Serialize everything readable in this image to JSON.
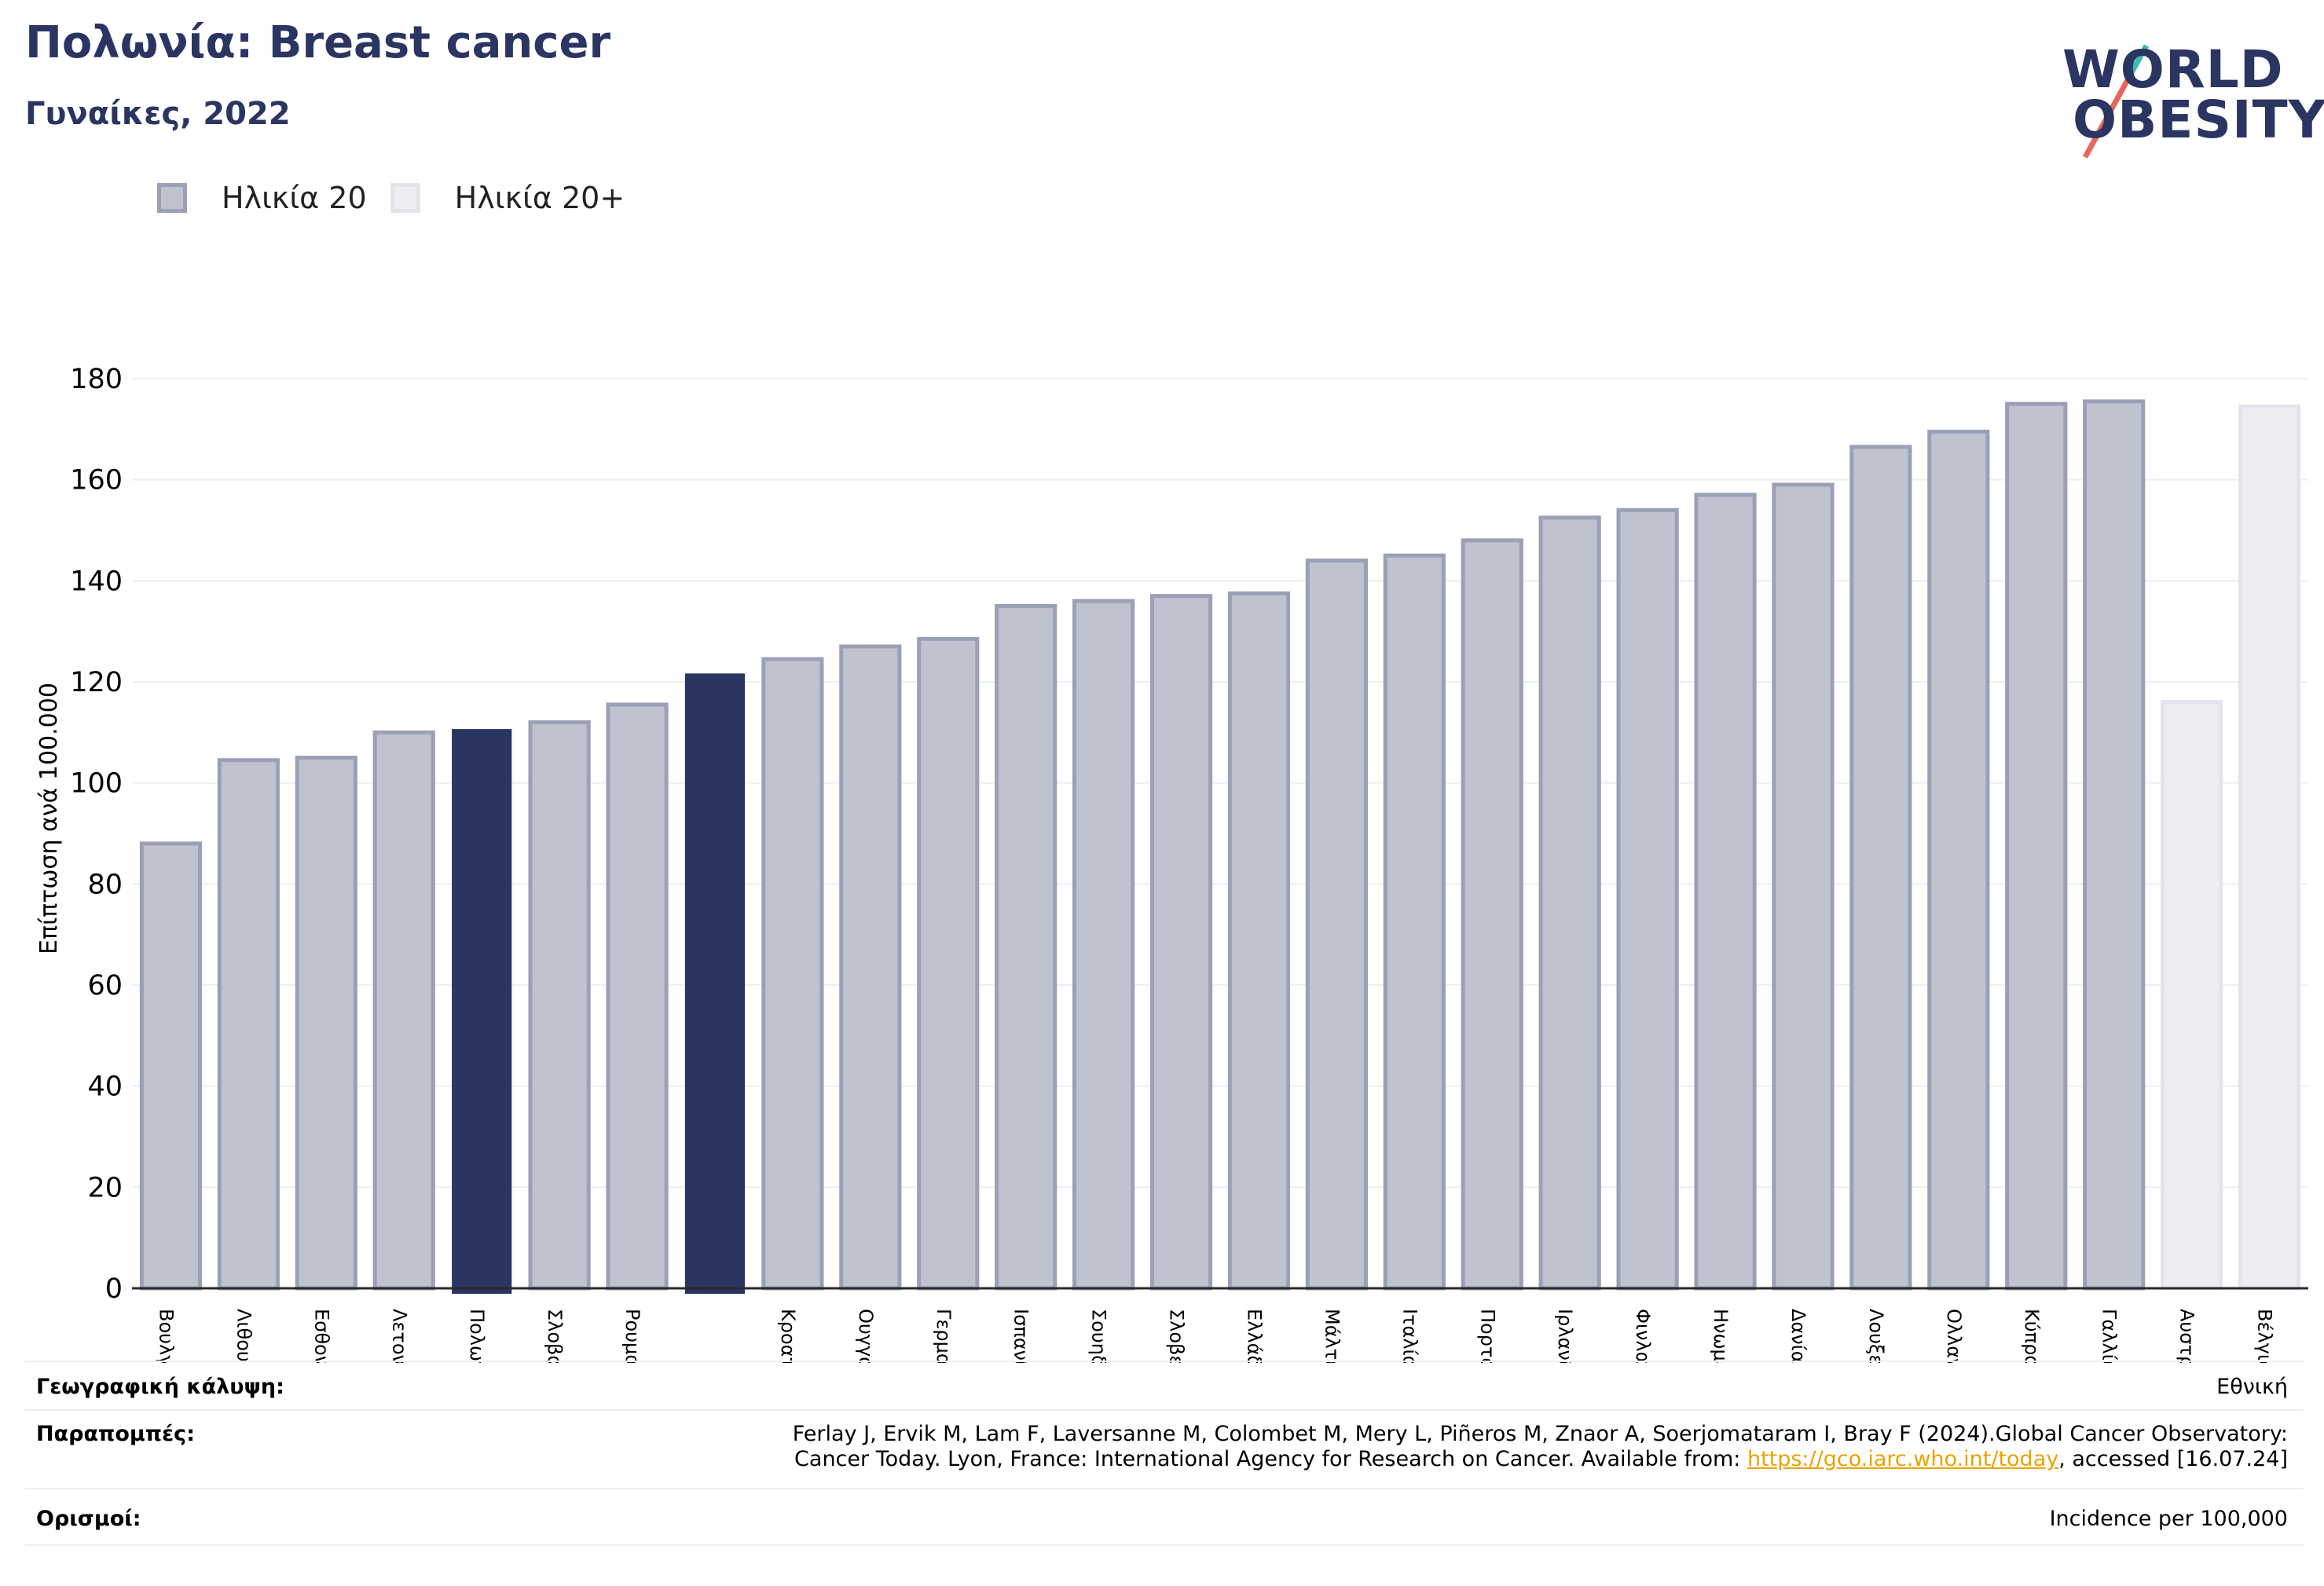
{
  "header": {
    "title": "Πολωνία: Breast cancer",
    "subtitle": "Γυναίκες, 2022"
  },
  "logo": {
    "line1": "WORLD",
    "line2": "OBESITY"
  },
  "legend": {
    "items": [
      {
        "label": "Ηλικία 20",
        "color": "#bfc2cf"
      },
      {
        "label": "Ηλικία 20+",
        "color": "#edeef2"
      }
    ]
  },
  "colors": {
    "bar_fill": "#bfc2cf",
    "bar_stroke": "#9ba0b6",
    "highlight": "#2a3561",
    "reference_fill": "#edeef2",
    "reference_stroke": "#e3e4ea",
    "gridline": "#eceef3",
    "axis": "#2a2a2a"
  },
  "chart_data": {
    "type": "bar",
    "title": "Πολωνία: Breast cancer",
    "subtitle": "Γυναίκες, 2022",
    "ylabel": "Επίπτωση ανά 100.000",
    "ylim": [
      0,
      180
    ],
    "yticks": [
      0,
      20,
      40,
      60,
      80,
      100,
      120,
      140,
      160,
      180
    ],
    "grid": true,
    "legend_position": "top-left",
    "bars": [
      {
        "label": "Βουλγαρία",
        "value": 88,
        "kind": "country"
      },
      {
        "label": "Λιθουανία",
        "value": 104.5,
        "kind": "country"
      },
      {
        "label": "Εσθονία",
        "value": 105,
        "kind": "country"
      },
      {
        "label": "Λετονία",
        "value": 110,
        "kind": "country"
      },
      {
        "label": "Πολωνία",
        "value": 110.5,
        "kind": "highlight"
      },
      {
        "label": "Σλοβακία",
        "value": 112,
        "kind": "country"
      },
      {
        "label": "Ρουμανία",
        "value": 115.5,
        "kind": "country"
      },
      {
        "label": "",
        "value": 121.5,
        "kind": "highlight"
      },
      {
        "label": "Κροατία",
        "value": 124.5,
        "kind": "country"
      },
      {
        "label": "Ουγγαρία",
        "value": 127,
        "kind": "country"
      },
      {
        "label": "Γερμανία",
        "value": 128.5,
        "kind": "country"
      },
      {
        "label": "Ισπανία",
        "value": 135,
        "kind": "country"
      },
      {
        "label": "Σουηδία",
        "value": 136,
        "kind": "country"
      },
      {
        "label": "Σλοβενία",
        "value": 137,
        "kind": "country"
      },
      {
        "label": "Ελλάδα",
        "value": 137.5,
        "kind": "country"
      },
      {
        "label": "Μάλτα",
        "value": 144,
        "kind": "country"
      },
      {
        "label": "Ιταλία",
        "value": 145,
        "kind": "country"
      },
      {
        "label": "Πορτογαλία",
        "value": 148,
        "kind": "country"
      },
      {
        "label": "Ιρλανδία",
        "value": 152.5,
        "kind": "country"
      },
      {
        "label": "Φινλανδία",
        "value": 154,
        "kind": "country"
      },
      {
        "label": "Ηνωμένο Βασίλειο",
        "value": 157,
        "kind": "country"
      },
      {
        "label": "Δανία",
        "value": 159,
        "kind": "country"
      },
      {
        "label": "Λουξεμβούργο",
        "value": 166.5,
        "kind": "country"
      },
      {
        "label": "Ολλανδία",
        "value": 169.5,
        "kind": "country"
      },
      {
        "label": "Κύπρος",
        "value": 175,
        "kind": "country"
      },
      {
        "label": "Γαλλία",
        "value": 175.5,
        "kind": "country"
      },
      {
        "label": "Αυστρία",
        "value": 116,
        "kind": "reference"
      },
      {
        "label": "Βέλγιο",
        "value": 174.5,
        "kind": "reference"
      }
    ]
  },
  "footer": {
    "coverage": {
      "label": "Γεωγραφική κάλυψη:",
      "value": "Εθνική"
    },
    "references": {
      "label": "Παραπομπές:",
      "text1": "Ferlay J, Ervik M, Lam F, Laversanne M, Colombet M, Mery L, Piñeros M, Znaor A, Soerjomataram I, Bray F (2024).Global Cancer Observatory:",
      "text2": "Cancer Today. Lyon, France: International Agency for Research on Cancer. Available from: ",
      "link": "https://gco.iarc.who.int/today",
      "text3": ", accessed [16.07.24]"
    },
    "definitions": {
      "label": "Ορισμοί:",
      "value": "Incidence per 100,000"
    }
  }
}
